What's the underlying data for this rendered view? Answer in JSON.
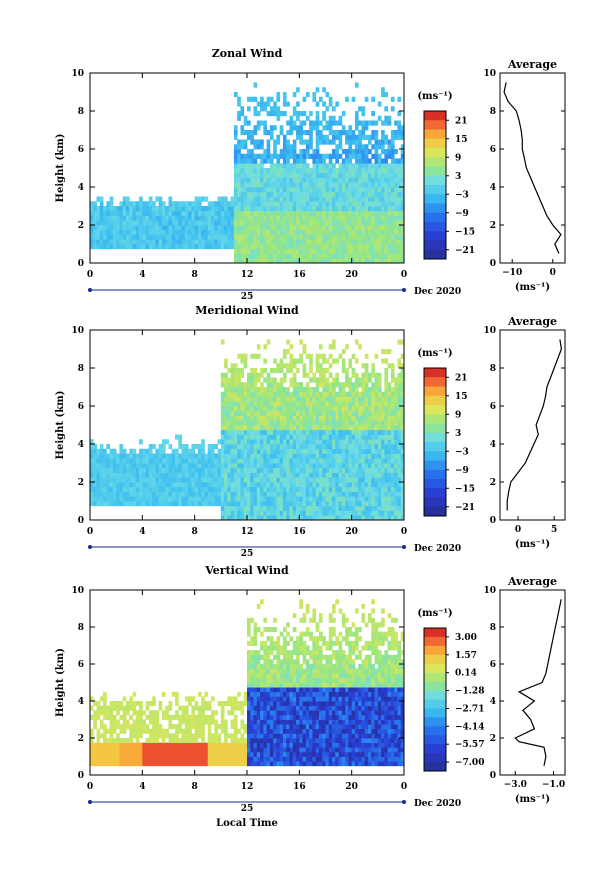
{
  "chart_data": [
    {
      "type": "heatmap",
      "title": "Zonal Wind",
      "xlabel": "",
      "ylabel": "Height (km)",
      "xlim": [
        0,
        24
      ],
      "ylim": [
        0,
        10
      ],
      "xticks": [
        "0",
        "4",
        "8",
        "12",
        "16",
        "20",
        "0"
      ],
      "yticks": [
        "0",
        "2",
        "4",
        "6",
        "8",
        "10"
      ],
      "date_label": "25",
      "month_label": "Dec 2020",
      "colorbar": {
        "unit": "(ms⁻¹)",
        "ticks": [
          "21",
          "15",
          "9",
          "3",
          "−3",
          "−9",
          "−15",
          "−21"
        ],
        "range": [
          -24,
          24
        ]
      },
      "average": {
        "title": "Average",
        "xlabel": "(ms⁻¹)",
        "xticks": [
          "−10",
          "0"
        ],
        "xlim": [
          -13,
          3
        ],
        "yticks": [
          "0",
          "2",
          "4",
          "6",
          "8",
          "10"
        ],
        "height": [
          0.5,
          1.0,
          1.5,
          2.0,
          2.5,
          3.0,
          3.5,
          4.0,
          4.5,
          5.0,
          5.5,
          6.0,
          6.5,
          7.0,
          7.5,
          8.0,
          8.5,
          9.0,
          9.5
        ],
        "value": [
          1.5,
          0.5,
          2.0,
          0.0,
          -1.5,
          -2.5,
          -3.5,
          -4.5,
          -5.5,
          -6.5,
          -7.0,
          -7.5,
          -7.5,
          -7.8,
          -8.3,
          -9.0,
          -11.0,
          -12.0,
          -11.5
        ]
      }
    },
    {
      "type": "heatmap",
      "title": "Meridional Wind",
      "xlabel": "",
      "ylabel": "Height (km)",
      "xlim": [
        0,
        24
      ],
      "ylim": [
        0,
        10
      ],
      "xticks": [
        "0",
        "4",
        "8",
        "12",
        "16",
        "20",
        "0"
      ],
      "yticks": [
        "0",
        "2",
        "4",
        "6",
        "8",
        "10"
      ],
      "date_label": "25",
      "month_label": "Dec 2020",
      "colorbar": {
        "unit": "(ms⁻¹)",
        "ticks": [
          "21",
          "15",
          "9",
          "3",
          "−3",
          "−9",
          "−15",
          "−21"
        ],
        "range": [
          -24,
          24
        ]
      },
      "average": {
        "title": "Average",
        "xlabel": "(ms⁻¹)",
        "xticks": [
          "0",
          "5"
        ],
        "xlim": [
          -2.5,
          6.5
        ],
        "yticks": [
          "0",
          "2",
          "4",
          "6",
          "8",
          "10"
        ],
        "height": [
          0.5,
          1.0,
          1.5,
          2.0,
          2.5,
          3.0,
          3.5,
          4.0,
          4.5,
          5.0,
          5.5,
          6.0,
          6.5,
          7.0,
          7.5,
          8.0,
          8.5,
          9.0,
          9.5
        ],
        "value": [
          -1.5,
          -1.5,
          -1.3,
          -1.0,
          0.0,
          1.0,
          1.6,
          2.2,
          2.8,
          2.5,
          3.0,
          3.5,
          3.8,
          4.0,
          4.5,
          5.0,
          5.5,
          6.0,
          5.8
        ]
      }
    },
    {
      "type": "heatmap",
      "title": "Vertical Wind",
      "xlabel": "Local Time",
      "ylabel": "Height (km)",
      "xlim": [
        0,
        24
      ],
      "ylim": [
        0,
        10
      ],
      "xticks": [
        "0",
        "4",
        "8",
        "12",
        "16",
        "20",
        "0"
      ],
      "yticks": [
        "0",
        "2",
        "4",
        "6",
        "8",
        "10"
      ],
      "date_label": "25",
      "month_label": "Dec 2020",
      "colorbar": {
        "unit": "(ms⁻¹)",
        "ticks": [
          "3.00",
          "1.57",
          "0.14",
          "−1.28",
          "−2.71",
          "−4.14",
          "−5.57",
          "−7.00"
        ],
        "range": [
          -7.7,
          3.7
        ]
      },
      "average": {
        "title": "Average",
        "xlabel": "(ms⁻¹)",
        "xticks": [
          "−3.0",
          "−1.0"
        ],
        "xlim": [
          -3.8,
          -0.4
        ],
        "yticks": [
          "0",
          "2",
          "4",
          "6",
          "8",
          "10"
        ],
        "height": [
          0.5,
          1.0,
          1.5,
          1.8,
          2.0,
          2.5,
          3.0,
          3.5,
          4.0,
          4.5,
          5.0,
          5.5,
          6.0,
          6.5,
          7.0,
          7.5,
          8.0,
          8.5,
          9.0,
          9.5
        ],
        "value": [
          -1.5,
          -1.4,
          -1.5,
          -2.8,
          -3.0,
          -2.0,
          -2.2,
          -2.6,
          -2.0,
          -2.8,
          -1.6,
          -1.4,
          -1.3,
          -1.2,
          -1.1,
          -1.0,
          -0.9,
          -0.8,
          -0.7,
          -0.6
        ]
      }
    }
  ]
}
